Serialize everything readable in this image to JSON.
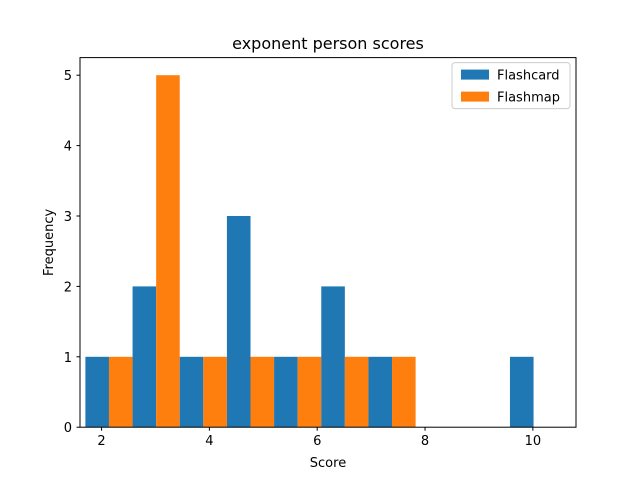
{
  "chart_data": {
    "type": "bar",
    "title": "exponent person scores",
    "xlabel": "Score",
    "ylabel": "Frequency",
    "xlim": [
      1.6,
      10.8
    ],
    "ylim": [
      0,
      5.25
    ],
    "xticks": [
      2,
      4,
      6,
      8,
      10
    ],
    "yticks": [
      0,
      1,
      2,
      3,
      4,
      5
    ],
    "grid": false,
    "legend": "top-right",
    "bin_edges": [
      1.7,
      2.575,
      3.45,
      4.325,
      5.2,
      6.075,
      6.95,
      7.825,
      8.7,
      9.575,
      10.45
    ],
    "series": [
      {
        "name": "Flashcard",
        "color": "#1f77b4",
        "values": [
          1,
          2,
          1,
          3,
          1,
          2,
          1,
          0,
          0,
          1
        ]
      },
      {
        "name": "Flashmap",
        "color": "#ff7f0e",
        "values": [
          1,
          5,
          1,
          1,
          1,
          1,
          1,
          0,
          0,
          0
        ]
      }
    ]
  }
}
